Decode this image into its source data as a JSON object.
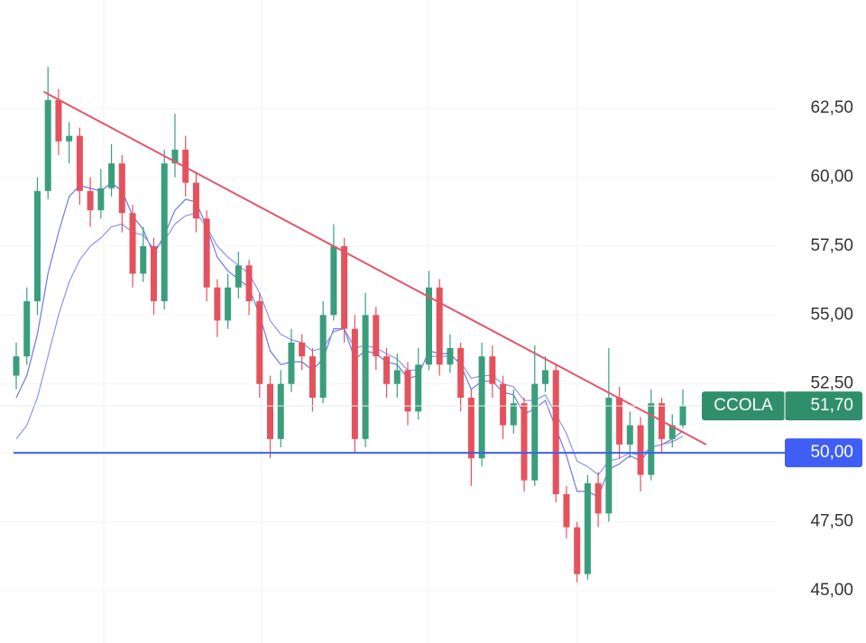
{
  "chart_data": {
    "type": "candlestick",
    "up_color": "#3a9e7c",
    "down_color": "#e4525d",
    "open": [
      52.8,
      53.5,
      55.5,
      59.5,
      62.8,
      61.3,
      61.5,
      59.5,
      58.8,
      59.6,
      60.5,
      58.7,
      56.5,
      57.5,
      55.5,
      60.5,
      61.0,
      59.8,
      58.5,
      56.0,
      54.8,
      56.0,
      56.8,
      55.5,
      52.5,
      50.5,
      52.5,
      54.0,
      53.5,
      52.0,
      55.0,
      57.5,
      54.5,
      50.5,
      55.0,
      53.5,
      52.5,
      53.0,
      51.5,
      53.2,
      56.0,
      53.2,
      53.8,
      52.0,
      49.8,
      53.5,
      52.5,
      51.0,
      51.8,
      49.0,
      52.5,
      53.0,
      48.5,
      47.3,
      45.6,
      48.9,
      47.8,
      52.0,
      50.3,
      51.0,
      49.2,
      51.8,
      50.5,
      51.0
    ],
    "high": [
      54.0,
      56.0,
      60.0,
      64.0,
      63.2,
      62.0,
      61.8,
      60.0,
      60.3,
      61.2,
      60.8,
      59.0,
      58.2,
      57.8,
      61.0,
      62.3,
      61.5,
      60.2,
      58.8,
      56.3,
      56.5,
      57.3,
      57.0,
      55.8,
      52.8,
      53.0,
      54.5,
      54.3,
      53.8,
      55.5,
      58.3,
      57.8,
      55.0,
      55.8,
      55.3,
      53.8,
      53.6,
      53.3,
      53.8,
      56.6,
      56.3,
      54.3,
      54.0,
      52.3,
      54.0,
      53.9,
      52.8,
      52.3,
      52.0,
      53.9,
      53.5,
      53.2,
      48.8,
      47.5,
      49.2,
      49.3,
      53.8,
      52.4,
      51.5,
      51.3,
      52.3,
      52.0,
      51.4,
      52.3
    ],
    "low": [
      52.3,
      53.2,
      55.0,
      59.2,
      60.8,
      60.5,
      59.0,
      58.2,
      58.5,
      59.3,
      58.0,
      56.0,
      56.2,
      55.0,
      55.2,
      60.0,
      59.3,
      58.0,
      55.5,
      54.2,
      54.5,
      55.6,
      55.0,
      52.0,
      49.8,
      50.2,
      52.2,
      53.0,
      51.5,
      51.8,
      54.8,
      54.0,
      50.0,
      50.2,
      53.0,
      52.0,
      52.0,
      51.0,
      51.2,
      53.0,
      52.8,
      52.9,
      51.5,
      48.8,
      49.5,
      52.0,
      50.5,
      50.7,
      48.6,
      48.8,
      52.2,
      48.2,
      46.9,
      45.3,
      45.4,
      47.3,
      47.5,
      49.8,
      49.8,
      48.6,
      49.0,
      50.0,
      50.2,
      50.9
    ],
    "close": [
      53.5,
      55.5,
      59.5,
      62.8,
      61.3,
      61.5,
      59.5,
      58.8,
      59.6,
      60.5,
      58.7,
      56.5,
      57.5,
      55.5,
      60.5,
      61.0,
      59.8,
      58.5,
      56.0,
      54.8,
      56.0,
      56.8,
      55.5,
      52.5,
      50.5,
      52.5,
      54.0,
      53.5,
      52.0,
      55.0,
      57.5,
      54.5,
      50.5,
      55.0,
      53.5,
      52.5,
      53.0,
      51.5,
      53.2,
      56.0,
      53.2,
      53.8,
      52.0,
      49.8,
      53.5,
      52.5,
      51.0,
      51.8,
      49.0,
      52.5,
      53.0,
      48.5,
      47.3,
      45.6,
      48.9,
      47.8,
      52.0,
      50.3,
      51.0,
      49.2,
      51.8,
      50.5,
      51.0,
      51.7
    ],
    "lines": [
      {
        "color": "#6f78e6",
        "values": [
          52.0,
          52.8,
          54.3,
          56.5,
          58.0,
          59.3,
          59.7,
          59.6,
          59.5,
          59.8,
          59.5,
          58.6,
          58.1,
          57.2,
          57.9,
          58.8,
          59.2,
          59.1,
          58.2,
          57.1,
          56.6,
          56.3,
          56.0,
          55.0,
          53.7,
          53.2,
          53.3,
          53.3,
          53.0,
          53.4,
          54.5,
          54.5,
          53.4,
          53.7,
          53.6,
          53.3,
          53.2,
          52.7,
          52.8,
          53.7,
          53.6,
          53.6,
          53.2,
          52.3,
          52.6,
          52.6,
          52.2,
          52.1,
          51.4,
          51.6,
          51.9,
          50.9,
          49.9,
          48.6,
          48.6,
          48.4,
          49.4,
          49.6,
          49.9,
          49.7,
          50.2,
          50.3,
          50.5,
          50.8
        ]
      },
      {
        "color": "#8d94ee",
        "values": [
          50.5,
          51.0,
          52.0,
          53.5,
          55.0,
          56.2,
          57.0,
          57.5,
          57.8,
          58.2,
          58.3,
          58.0,
          57.9,
          57.4,
          57.7,
          58.3,
          58.6,
          58.7,
          58.2,
          57.5,
          57.1,
          56.8,
          56.5,
          55.8,
          54.8,
          54.3,
          54.1,
          54.0,
          53.7,
          53.8,
          54.4,
          54.5,
          53.8,
          53.9,
          53.8,
          53.6,
          53.4,
          53.0,
          53.0,
          53.5,
          53.5,
          53.5,
          53.3,
          52.7,
          52.8,
          52.8,
          52.5,
          52.4,
          51.9,
          51.9,
          52.1,
          51.4,
          50.7,
          49.7,
          49.5,
          49.2,
          49.7,
          49.8,
          50.0,
          49.9,
          50.2,
          50.3,
          50.4,
          50.6
        ]
      }
    ],
    "trendline": {
      "x": [
        2.6,
        65.2
      ],
      "y": [
        63.1,
        50.3
      ],
      "color": "#e2566b"
    },
    "hline": {
      "value": 50,
      "label": "50,00",
      "color": "#3f5ef5"
    },
    "last_price": {
      "ticker": "CCOLA",
      "value": 51.7,
      "label": "51,70",
      "color": "#2f8f6c"
    },
    "ylim": [
      43.1,
      66.43
    ],
    "yticks": [
      {
        "value": 45,
        "label": "45,00"
      },
      {
        "value": 47.5,
        "label": "47,50"
      },
      {
        "value": 50,
        "label": "50,00"
      },
      {
        "value": 52.5,
        "label": "52,50"
      },
      {
        "value": 55,
        "label": "55,00"
      },
      {
        "value": 57.5,
        "label": "57,50"
      },
      {
        "value": 60,
        "label": "60,00"
      },
      {
        "value": 62.5,
        "label": "62,50"
      }
    ],
    "grid": true
  }
}
